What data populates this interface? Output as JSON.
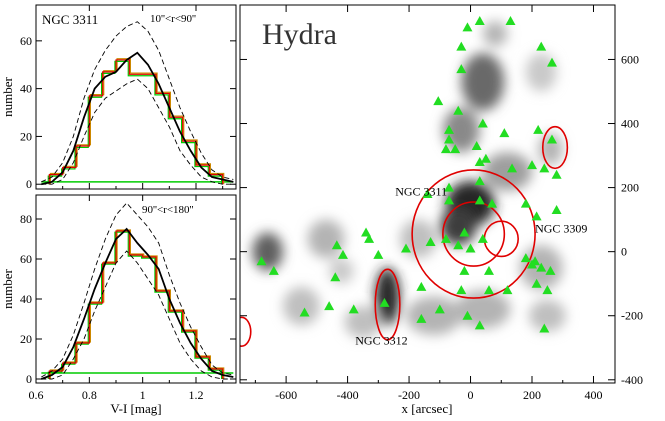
{
  "chart_data": [
    {
      "type": "line",
      "panel": "top-left",
      "galaxy_label": "NGC 3311",
      "range_label": "10''<r<90''",
      "ylabel": "number",
      "xlabel": "V-I [mag]",
      "xlim": [
        0.6,
        1.35
      ],
      "ylim": [
        -2,
        75
      ],
      "x_ticks": [
        "0.6",
        "0.8",
        "1",
        "1.2"
      ],
      "y_ticks": [
        "0",
        "20",
        "40",
        "60"
      ],
      "hist_edges": [
        0.65,
        0.7,
        0.75,
        0.8,
        0.85,
        0.9,
        0.95,
        1.0,
        1.05,
        1.1,
        1.15,
        1.2,
        1.25,
        1.3
      ],
      "hist_values": [
        4,
        7,
        16,
        37,
        47,
        52,
        46,
        46,
        38,
        28,
        18,
        8,
        4
      ],
      "smooth_x": [
        0.62,
        0.66,
        0.7,
        0.74,
        0.78,
        0.82,
        0.86,
        0.9,
        0.94,
        0.98,
        1.02,
        1.06,
        1.1,
        1.14,
        1.18,
        1.22,
        1.26,
        1.3,
        1.34
      ],
      "smooth_y": [
        0,
        1,
        5,
        14,
        28,
        40,
        45,
        47,
        52,
        55,
        50,
        42,
        32,
        22,
        14,
        7,
        3,
        2,
        1
      ],
      "upper_y": [
        1,
        3,
        9,
        20,
        36,
        48,
        56,
        62,
        66,
        68,
        64,
        56,
        44,
        32,
        22,
        13,
        6,
        3,
        2
      ],
      "lower_y": [
        0,
        0,
        2,
        9,
        20,
        30,
        36,
        39,
        42,
        44,
        40,
        32,
        24,
        14,
        8,
        3,
        1,
        0,
        0
      ],
      "flat_level": 1
    },
    {
      "type": "line",
      "panel": "bottom-left",
      "galaxy_label": "",
      "range_label": "90''<r<180''",
      "ylabel": "number",
      "xlabel": "V-I [mag]",
      "xlim": [
        0.6,
        1.35
      ],
      "ylim": [
        -2,
        92
      ],
      "x_ticks": [
        "0.6",
        "0.8",
        "1",
        "1.2"
      ],
      "y_ticks": [
        "0",
        "20",
        "40",
        "60",
        "80"
      ],
      "hist_edges": [
        0.65,
        0.7,
        0.75,
        0.8,
        0.85,
        0.9,
        0.95,
        1.0,
        1.05,
        1.1,
        1.15,
        1.2,
        1.25,
        1.3
      ],
      "hist_values": [
        4,
        8,
        18,
        38,
        58,
        74,
        62,
        61,
        44,
        34,
        24,
        11,
        5
      ],
      "smooth_x": [
        0.62,
        0.66,
        0.7,
        0.74,
        0.78,
        0.82,
        0.86,
        0.9,
        0.94,
        0.98,
        1.02,
        1.06,
        1.1,
        1.14,
        1.18,
        1.22,
        1.26,
        1.3,
        1.34
      ],
      "smooth_y": [
        0,
        2,
        6,
        16,
        30,
        45,
        58,
        70,
        75,
        68,
        62,
        55,
        40,
        28,
        18,
        10,
        4,
        2,
        1
      ],
      "upper_y": [
        1,
        4,
        10,
        22,
        38,
        55,
        70,
        82,
        88,
        82,
        76,
        68,
        52,
        38,
        26,
        16,
        7,
        3,
        2
      ],
      "lower_y": [
        0,
        0,
        2,
        10,
        20,
        34,
        46,
        58,
        64,
        58,
        50,
        42,
        30,
        18,
        10,
        4,
        1,
        0,
        0
      ],
      "flat_level": 3
    },
    {
      "type": "scatter",
      "panel": "right",
      "title": "Hydra",
      "xlabel": "x [arcsec]",
      "xlim": [
        -750,
        470
      ],
      "ylim": [
        -410,
        770
      ],
      "x_ticks": [
        "-600",
        "-400",
        "-200",
        "0",
        "200",
        "400"
      ],
      "y_ticks": [
        "-400",
        "-200",
        "0",
        "200",
        "400",
        "600"
      ],
      "galaxy_labels": [
        {
          "text": "NGC 3311",
          "x": -245,
          "y": 175
        },
        {
          "text": "NGC 3309",
          "x": 210,
          "y": 60
        },
        {
          "text": "NGC 3312",
          "x": -375,
          "y": -290
        }
      ],
      "sources_x": [
        30,
        130,
        -10,
        -30,
        230,
        265,
        -30,
        -105,
        -40,
        -70,
        40,
        110,
        220,
        265,
        -70,
        20,
        -80,
        -50,
        30,
        50,
        135,
        200,
        240,
        280,
        30,
        -70,
        -140,
        -70,
        30,
        70,
        180,
        215,
        280,
        -20,
        -80,
        -40,
        0,
        40,
        -130,
        -210,
        -300,
        -330,
        -435,
        -415,
        -340,
        -680,
        -640,
        -440,
        -160,
        -30,
        60,
        120,
        215,
        250,
        -460,
        -540,
        -380,
        -280,
        -100,
        -10,
        -160,
        30,
        240,
        200,
        260,
        230,
        -20,
        60,
        180,
        210
      ],
      "sources_y": [
        720,
        720,
        700,
        640,
        640,
        590,
        570,
        470,
        440,
        380,
        400,
        370,
        380,
        350,
        350,
        330,
        320,
        320,
        280,
        290,
        260,
        270,
        260,
        240,
        220,
        200,
        180,
        160,
        160,
        150,
        150,
        110,
        130,
        60,
        40,
        20,
        10,
        40,
        30,
        10,
        -10,
        40,
        20,
        -10,
        60,
        -30,
        -60,
        -80,
        -110,
        -120,
        -120,
        -120,
        -100,
        -120,
        -170,
        -190,
        -180,
        -160,
        -180,
        -200,
        -210,
        -230,
        -240,
        -40,
        -60,
        -50,
        -60,
        -60,
        -20,
        -30
      ],
      "red_ellipses": [
        {
          "cx": 10,
          "cy": 55,
          "rx": 200,
          "ry": 200
        },
        {
          "cx": 10,
          "cy": 55,
          "rx": 100,
          "ry": 100
        },
        {
          "cx": 100,
          "cy": 40,
          "rx": 55,
          "ry": 55
        },
        {
          "cx": 275,
          "cy": 325,
          "rx": 40,
          "ry": 65
        },
        {
          "cx": -270,
          "cy": -165,
          "rx": 40,
          "ry": 110
        },
        {
          "cx": -745,
          "cy": -250,
          "rx": 30,
          "ry": 45
        }
      ],
      "density_blobs": [
        {
          "x": 0,
          "y": 150,
          "sx": 80,
          "sy": 70,
          "a": 1.0
        },
        {
          "x": -40,
          "y": 80,
          "sx": 60,
          "sy": 60,
          "a": 0.9
        },
        {
          "x": -270,
          "y": -140,
          "sx": 40,
          "sy": 90,
          "a": 1.0
        },
        {
          "x": 40,
          "y": 530,
          "sx": 70,
          "sy": 90,
          "a": 0.7
        },
        {
          "x": -30,
          "y": 380,
          "sx": 60,
          "sy": 70,
          "a": 0.55
        },
        {
          "x": 80,
          "y": 680,
          "sx": 40,
          "sy": 40,
          "a": 0.35
        },
        {
          "x": 120,
          "y": 250,
          "sx": 80,
          "sy": 60,
          "a": 0.45
        },
        {
          "x": -660,
          "y": 0,
          "sx": 50,
          "sy": 60,
          "a": 0.75
        },
        {
          "x": -470,
          "y": 40,
          "sx": 60,
          "sy": 60,
          "a": 0.35
        },
        {
          "x": -550,
          "y": -170,
          "sx": 60,
          "sy": 60,
          "a": 0.3
        },
        {
          "x": -120,
          "y": -200,
          "sx": 90,
          "sy": 60,
          "a": 0.35
        },
        {
          "x": 230,
          "y": -50,
          "sx": 70,
          "sy": 70,
          "a": 0.35
        },
        {
          "x": 40,
          "y": -180,
          "sx": 90,
          "sy": 60,
          "a": 0.35
        },
        {
          "x": -350,
          "y": -220,
          "sx": 60,
          "sy": 50,
          "a": 0.3
        },
        {
          "x": 230,
          "y": 560,
          "sx": 50,
          "sy": 60,
          "a": 0.25
        },
        {
          "x": -170,
          "y": 40,
          "sx": 60,
          "sy": 60,
          "a": 0.3
        },
        {
          "x": 250,
          "y": -200,
          "sx": 60,
          "sy": 50,
          "a": 0.3
        },
        {
          "x": -420,
          "y": -60,
          "sx": 40,
          "sy": 40,
          "a": 0.25
        },
        {
          "x": 260,
          "y": 320,
          "sx": 40,
          "sy": 50,
          "a": 0.35
        }
      ]
    }
  ],
  "colors": {
    "green_hist": "#00cc00",
    "red_hist": "#e00000",
    "orange_hist": "#cc8800",
    "marker": "#22dd22",
    "ellipse": "#e00000"
  }
}
